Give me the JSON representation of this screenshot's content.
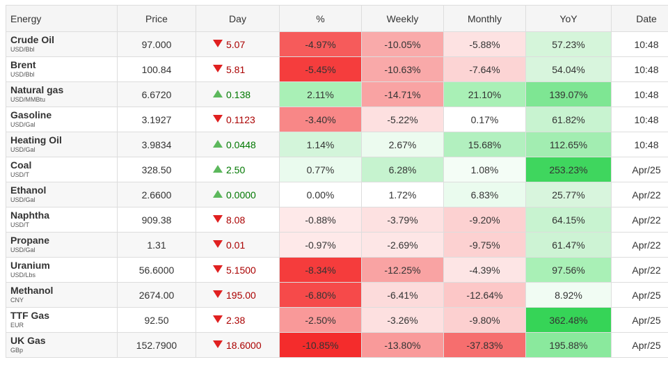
{
  "table": {
    "header": [
      "Energy",
      "Price",
      "Day",
      "%",
      "Weekly",
      "Monthly",
      "YoY",
      "Date"
    ],
    "rows": [
      {
        "name": "Crude Oil",
        "unit": "USD/Bbl",
        "price": "97.000",
        "dir": "down",
        "day": "5.07",
        "pct": "-4.97%",
        "weekly": "-10.05%",
        "monthly": "-5.88%",
        "yoy": "57.23%",
        "date": "10:48",
        "colors": [
          "#f65b5b",
          "#f9aaaa",
          "#fde2e2",
          "#d5f5da"
        ]
      },
      {
        "name": "Brent",
        "unit": "USD/Bbl",
        "price": "100.84",
        "dir": "down",
        "day": "5.81",
        "pct": "-5.45%",
        "weekly": "-10.63%",
        "monthly": "-7.64%",
        "yoy": "54.04%",
        "date": "10:48",
        "colors": [
          "#f53d3d",
          "#f9a9a9",
          "#fcd4d4",
          "#d8f5dd"
        ]
      },
      {
        "name": "Natural gas",
        "unit": "USD/MMBtu",
        "price": "6.6720",
        "dir": "up",
        "day": "0.138",
        "pct": "2.11%",
        "weekly": "-14.71%",
        "monthly": "21.10%",
        "yoy": "139.07%",
        "date": "10:48",
        "colors": [
          "#a9f0b6",
          "#f9a3a3",
          "#a9f0b6",
          "#7ee693"
        ]
      },
      {
        "name": "Gasoline",
        "unit": "USD/Gal",
        "price": "3.1927",
        "dir": "down",
        "day": "0.1123",
        "pct": "-3.40%",
        "weekly": "-5.22%",
        "monthly": "0.17%",
        "yoy": "61.82%",
        "date": "10:48",
        "colors": [
          "#f88787",
          "#fde0e0",
          "#ffffff",
          "#c8f3d0"
        ]
      },
      {
        "name": "Heating Oil",
        "unit": "USD/Gal",
        "price": "3.9834",
        "dir": "up",
        "day": "0.0448",
        "pct": "1.14%",
        "weekly": "2.67%",
        "monthly": "15.68%",
        "yoy": "112.65%",
        "date": "10:48",
        "colors": [
          "#d3f5da",
          "#ecfbef",
          "#b2f0bf",
          "#a2edb1"
        ]
      },
      {
        "name": "Coal",
        "unit": "USD/T",
        "price": "328.50",
        "dir": "up",
        "day": "2.50",
        "pct": "0.77%",
        "weekly": "6.28%",
        "monthly": "1.08%",
        "yoy": "253.23%",
        "date": "Apr/25",
        "colors": [
          "#eafbee",
          "#c6f3cf",
          "#f4fdf6",
          "#3fd65e"
        ]
      },
      {
        "name": "Ethanol",
        "unit": "USD/Gal",
        "price": "2.6600",
        "dir": "up",
        "day": "0.0000",
        "pct": "0.00%",
        "weekly": "1.72%",
        "monthly": "6.83%",
        "yoy": "25.77%",
        "date": "Apr/22",
        "colors": [
          "#ffffff",
          "#ffffff",
          "#eafbee",
          "#d8f5dd"
        ]
      },
      {
        "name": "Naphtha",
        "unit": "USD/T",
        "price": "909.38",
        "dir": "down",
        "day": "8.08",
        "pct": "-0.88%",
        "weekly": "-3.79%",
        "monthly": "-9.20%",
        "yoy": "64.15%",
        "date": "Apr/22",
        "colors": [
          "#fee9e9",
          "#fde1e1",
          "#fcd1d1",
          "#c8f3d0"
        ]
      },
      {
        "name": "Propane",
        "unit": "USD/Gal",
        "price": "1.31",
        "dir": "down",
        "day": "0.01",
        "pct": "-0.97%",
        "weekly": "-2.69%",
        "monthly": "-9.75%",
        "yoy": "61.47%",
        "date": "Apr/22",
        "colors": [
          "#fee9e9",
          "#fde6e6",
          "#fcd1d1",
          "#cdf3d4"
        ]
      },
      {
        "name": "Uranium",
        "unit": "USD/Lbs",
        "price": "56.6000",
        "dir": "down",
        "day": "5.1500",
        "pct": "-8.34%",
        "weekly": "-12.25%",
        "monthly": "-4.39%",
        "yoy": "97.56%",
        "date": "Apr/22",
        "colors": [
          "#f53c3c",
          "#f9a3a3",
          "#fde5e5",
          "#a9f0b6"
        ]
      },
      {
        "name": "Methanol",
        "unit": "CNY",
        "price": "2674.00",
        "dir": "down",
        "day": "195.00",
        "pct": "-6.80%",
        "weekly": "-6.41%",
        "monthly": "-12.64%",
        "yoy": "8.92%",
        "date": "Apr/25",
        "colors": [
          "#f64a4a",
          "#fcdbdb",
          "#fcc7c7",
          "#f1fcf3"
        ]
      },
      {
        "name": "TTF Gas",
        "unit": "EUR",
        "price": "92.50",
        "dir": "down",
        "day": "2.38",
        "pct": "-2.50%",
        "weekly": "-3.26%",
        "monthly": "-9.80%",
        "yoy": "362.48%",
        "date": "Apr/25",
        "colors": [
          "#f99999",
          "#fde0e0",
          "#fcd0d0",
          "#36d457"
        ]
      },
      {
        "name": "UK Gas",
        "unit": "GBp",
        "price": "152.7900",
        "dir": "down",
        "day": "18.6000",
        "pct": "-10.85%",
        "weekly": "-13.80%",
        "monthly": "-37.83%",
        "yoy": "195.88%",
        "date": "Apr/25",
        "colors": [
          "#f42c2c",
          "#f99a9a",
          "#f66e6e",
          "#8ae99d"
        ]
      }
    ]
  }
}
